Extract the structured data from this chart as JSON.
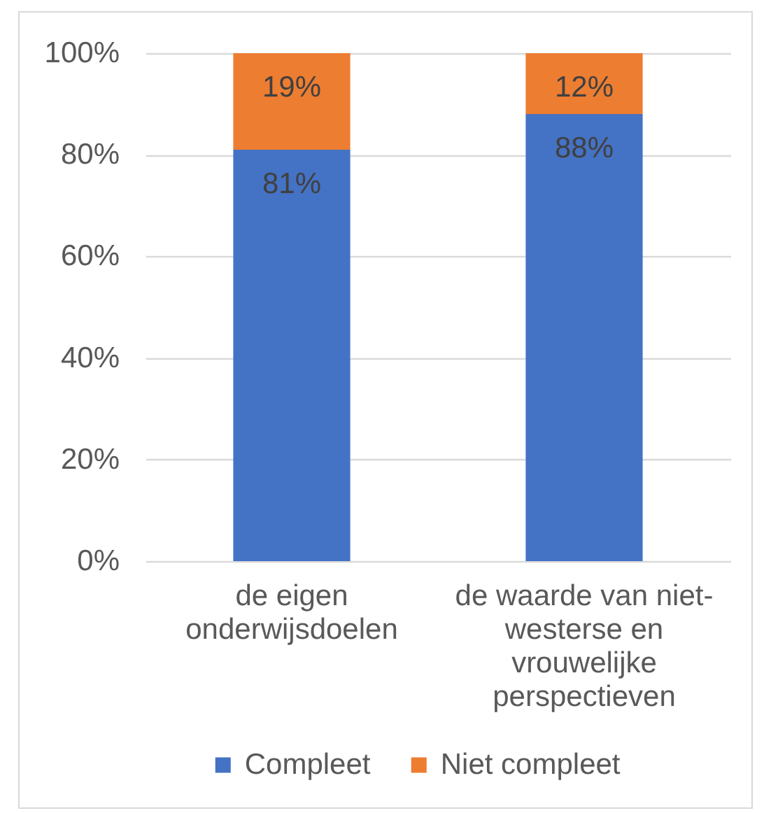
{
  "chart_data": {
    "type": "bar",
    "stacked": true,
    "categories": [
      "de eigen onderwijsdoelen",
      "de waarde van niet-westerse en vrouwelijke perspectieven"
    ],
    "series": [
      {
        "name": "Compleet",
        "color": "#4472c4",
        "values": [
          81,
          88
        ],
        "value_labels": [
          "81%",
          "88%"
        ]
      },
      {
        "name": "Niet compleet",
        "color": "#ed7d31",
        "values": [
          19,
          12
        ],
        "value_labels": [
          "19%",
          "12%"
        ]
      }
    ],
    "ylim": [
      0,
      100
    ],
    "yticks": [
      {
        "value": 0,
        "label": "0%"
      },
      {
        "value": 20,
        "label": "20%"
      },
      {
        "value": 40,
        "label": "40%"
      },
      {
        "value": 60,
        "label": "60%"
      },
      {
        "value": 80,
        "label": "80%"
      },
      {
        "value": 100,
        "label": "100%"
      }
    ],
    "grid": "y",
    "legend": "bottom"
  }
}
